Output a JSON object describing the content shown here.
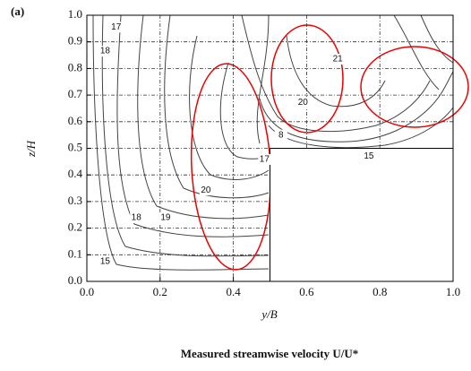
{
  "chart_data": {
    "type": "contour",
    "panel_label": "(a)",
    "title": "Measured streamwise velocity U/U*",
    "x_label": "y/B",
    "y_label": "z/H",
    "xlim": [
      0,
      1
    ],
    "ylim": [
      0,
      1
    ],
    "xticks": [
      {
        "value": 0,
        "label": "0.0"
      },
      0.2,
      0.4,
      0.6,
      0.8,
      {
        "value": 1,
        "label": "1.0"
      }
    ],
    "yticks": [
      {
        "value": 0,
        "label": "0.0"
      },
      0.1,
      0.2,
      0.3,
      0.4,
      0.5,
      0.6,
      0.7,
      0.8,
      0.9,
      {
        "value": 1,
        "label": "1.0"
      }
    ],
    "grid": true,
    "contour_labels": [
      {
        "level": 17,
        "x": 0.08,
        "y": 0.955
      },
      {
        "level": 18,
        "x": 0.05,
        "y": 0.865
      },
      {
        "level": 21,
        "x": 0.685,
        "y": 0.835
      },
      {
        "level": 20,
        "x": 0.59,
        "y": 0.673
      },
      {
        "level": 8,
        "x": 0.53,
        "y": 0.55
      },
      {
        "level": 15,
        "x": 0.77,
        "y": 0.47
      },
      {
        "level": 17,
        "x": 0.485,
        "y": 0.458
      },
      {
        "level": 20,
        "x": 0.325,
        "y": 0.343
      },
      {
        "level": 18,
        "x": 0.135,
        "y": 0.239
      },
      {
        "level": 19,
        "x": 0.215,
        "y": 0.239
      },
      {
        "level": 15,
        "x": 0.05,
        "y": 0.074
      }
    ]
  }
}
